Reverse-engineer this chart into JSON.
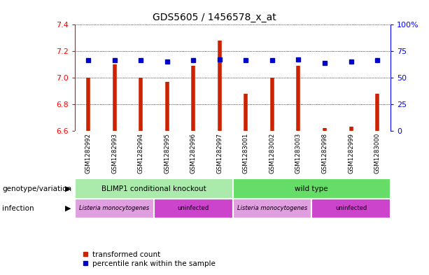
{
  "title": "GDS5605 / 1456578_x_at",
  "samples": [
    "GSM1282992",
    "GSM1282993",
    "GSM1282994",
    "GSM1282995",
    "GSM1282996",
    "GSM1282997",
    "GSM1283001",
    "GSM1283002",
    "GSM1283003",
    "GSM1282998",
    "GSM1282999",
    "GSM1283000"
  ],
  "red_values": [
    7.0,
    7.1,
    7.0,
    6.97,
    7.09,
    7.28,
    6.88,
    7.0,
    7.09,
    6.62,
    6.63,
    6.88
  ],
  "blue_values": [
    7.13,
    7.13,
    7.13,
    7.12,
    7.13,
    7.14,
    7.13,
    7.13,
    7.14,
    7.11,
    7.12,
    7.13
  ],
  "ylim_left": [
    6.6,
    7.4
  ],
  "y_ticks_left": [
    6.6,
    6.8,
    7.0,
    7.2,
    7.4
  ],
  "y_ticks_right": [
    0,
    25,
    50,
    75,
    100
  ],
  "bar_color": "#cc2200",
  "dot_color": "#0000cc",
  "bg_color": "#ffffff",
  "sample_bg_color": "#d8d8d8",
  "label_row1_left": "genotype/variation",
  "label_row2_left": "infection",
  "genotype_groups": [
    {
      "label": "BLIMP1 conditional knockout",
      "start": 0,
      "end": 6,
      "color": "#aaeaaa"
    },
    {
      "label": "wild type",
      "start": 6,
      "end": 12,
      "color": "#66dd66"
    }
  ],
  "infection_groups": [
    {
      "label": "Listeria monocytogenes",
      "start": 0,
      "end": 3,
      "color": "#e0a0e0"
    },
    {
      "label": "uninfected",
      "start": 3,
      "end": 6,
      "color": "#cc44cc"
    },
    {
      "label": "Listeria monocytogenes",
      "start": 6,
      "end": 9,
      "color": "#e0a0e0"
    },
    {
      "label": "uninfected",
      "start": 9,
      "end": 12,
      "color": "#cc44cc"
    }
  ],
  "legend_red_label": "transformed count",
  "legend_blue_label": "percentile rank within the sample",
  "base_value": 6.6
}
